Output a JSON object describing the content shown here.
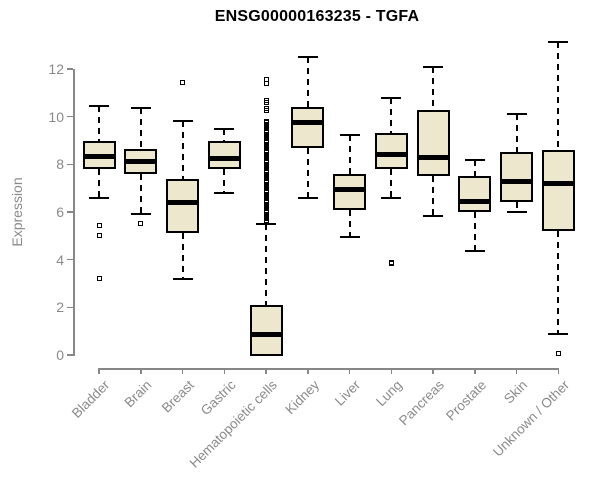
{
  "title": "ENSG00000163235 - TGFA",
  "chart_data": {
    "type": "boxplot",
    "title": "ENSG00000163235 - TGFA",
    "xlabel": "",
    "ylabel": "Expression",
    "ylim": [
      -0.3,
      13.3
    ],
    "yticks": [
      0,
      2,
      4,
      6,
      8,
      10,
      12
    ],
    "grid": false,
    "legend": false,
    "categories": [
      "Bladder",
      "Brain",
      "Breast",
      "Gastric",
      "Hematopoietic cells",
      "Kidney",
      "Liver",
      "Lung",
      "Pancreas",
      "Prostate",
      "Skin",
      "Unknown / Other"
    ],
    "series": [
      {
        "category": "Bladder",
        "whisker_low": 6.6,
        "q1": 7.8,
        "median": 8.35,
        "q3": 9.0,
        "whisker_high": 10.45,
        "outliers": [
          5.45,
          5.0,
          3.2
        ]
      },
      {
        "category": "Brain",
        "whisker_low": 5.9,
        "q1": 7.6,
        "median": 8.1,
        "q3": 8.65,
        "whisker_high": 10.35,
        "outliers": [
          5.5
        ]
      },
      {
        "category": "Breast",
        "whisker_low": 3.2,
        "q1": 5.1,
        "median": 6.4,
        "q3": 7.4,
        "whisker_high": 9.8,
        "outliers": [
          11.45
        ]
      },
      {
        "category": "Gastric",
        "whisker_low": 6.8,
        "q1": 7.8,
        "median": 8.25,
        "q3": 9.0,
        "whisker_high": 9.5,
        "outliers": []
      },
      {
        "category": "Hematopoietic cells",
        "whisker_low": -0.05,
        "q1": -0.05,
        "median": 0.85,
        "q3": 2.1,
        "whisker_high": 5.5,
        "outliers": [
          10.25,
          10.35,
          10.6,
          10.7,
          11.4,
          11.55
        ],
        "outliers_dense_range": [
          5.6,
          9.8
        ]
      },
      {
        "category": "Kidney",
        "whisker_low": 6.6,
        "q1": 8.7,
        "median": 9.75,
        "q3": 10.4,
        "whisker_high": 12.5,
        "outliers": []
      },
      {
        "category": "Liver",
        "whisker_low": 4.95,
        "q1": 6.1,
        "median": 6.95,
        "q3": 7.6,
        "whisker_high": 9.25,
        "outliers": []
      },
      {
        "category": "Lung",
        "whisker_low": 6.6,
        "q1": 7.8,
        "median": 8.4,
        "q3": 9.3,
        "whisker_high": 10.8,
        "outliers": [
          3.9,
          3.85
        ]
      },
      {
        "category": "Pancreas",
        "whisker_low": 5.85,
        "q1": 7.5,
        "median": 8.3,
        "q3": 10.3,
        "whisker_high": 12.1,
        "outliers": []
      },
      {
        "category": "Prostate",
        "whisker_low": 4.35,
        "q1": 6.0,
        "median": 6.45,
        "q3": 7.5,
        "whisker_high": 8.2,
        "outliers": []
      },
      {
        "category": "Skin",
        "whisker_low": 6.0,
        "q1": 6.4,
        "median": 7.3,
        "q3": 8.5,
        "whisker_high": 10.1,
        "outliers": []
      },
      {
        "category": "Unknown / Other",
        "whisker_low": 0.9,
        "q1": 5.2,
        "median": 7.2,
        "q3": 8.6,
        "whisker_high": 13.15,
        "outliers": [
          0.05
        ]
      }
    ],
    "colors": {
      "box_fill": "#EDE8CD",
      "box_border": "#000000",
      "median": "#000000",
      "whisker": "#000000",
      "axis": "#878787",
      "tick_label": "#8A8A8A",
      "title": "#000000",
      "background": "#FFFFFF"
    }
  }
}
